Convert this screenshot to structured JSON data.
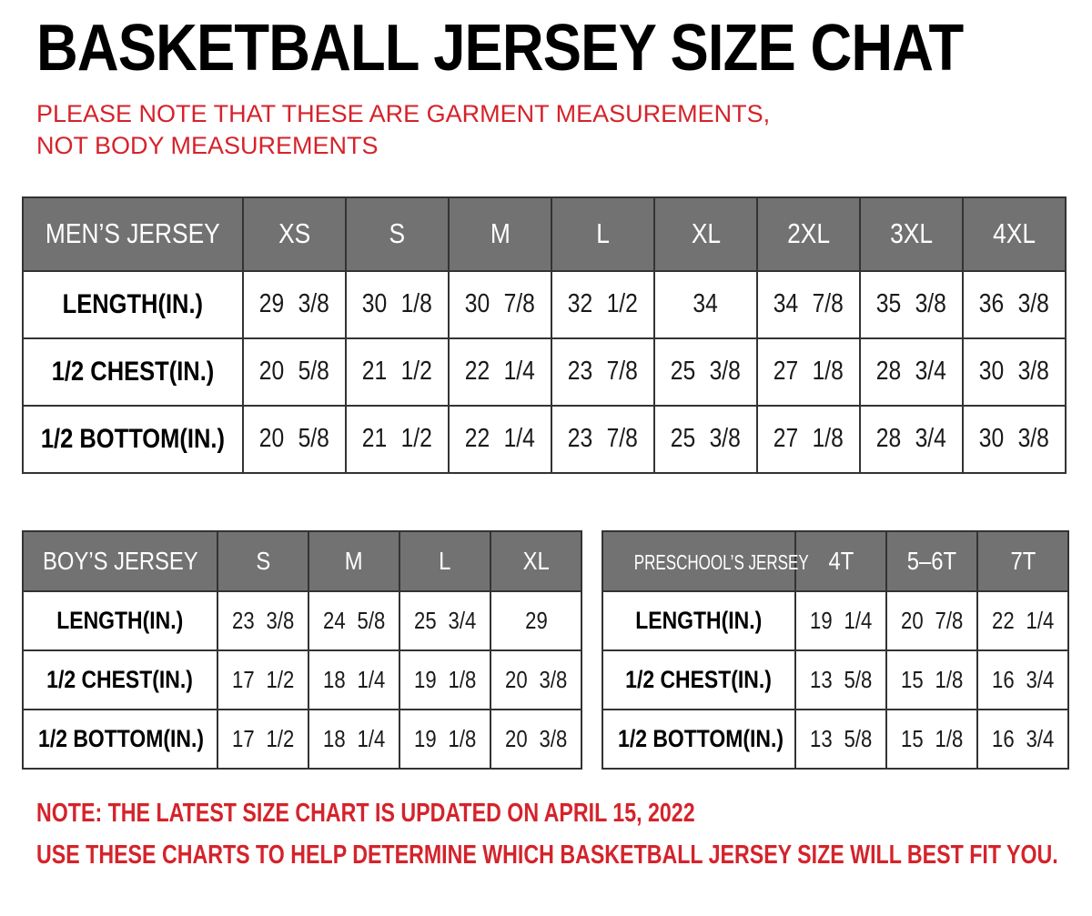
{
  "title": "BASKETBALL JERSEY SIZE CHAT",
  "top_note": "PLEASE NOTE THAT THESE ARE GARMENT MEASUREMENTS, NOT BODY MEASUREMENTS",
  "colors": {
    "accent_red": "#d5232b",
    "header_gray": "#727272",
    "table_border": "#333333",
    "title_black": "#000000"
  },
  "mens_table": {
    "header": [
      "MEN’S JERSEY",
      "XS",
      "S",
      "M",
      "L",
      "XL",
      "2XL",
      "3XL",
      "4XL"
    ],
    "rows": [
      {
        "label": "LENGTH(IN.)",
        "values": [
          "29 3/8",
          "30 1/8",
          "30 7/8",
          "32 1/2",
          "34",
          "34 7/8",
          "35 3/8",
          "36 3/8"
        ]
      },
      {
        "label": "1/2 CHEST(IN.)",
        "values": [
          "20 5/8",
          "21 1/2",
          "22 1/4",
          "23 7/8",
          "25 3/8",
          "27 1/8",
          "28 3/4",
          "30 3/8"
        ]
      },
      {
        "label": "1/2 BOTTOM(IN.)",
        "values": [
          "20 5/8",
          "21 1/2",
          "22 1/4",
          "23 7/8",
          "25 3/8",
          "27 1/8",
          "28 3/4",
          "30 3/8"
        ]
      }
    ]
  },
  "boys_table": {
    "header": [
      "BOY’S JERSEY",
      "S",
      "M",
      "L",
      "XL"
    ],
    "rows": [
      {
        "label": "LENGTH(IN.)",
        "values": [
          "23 3/8",
          "24 5/8",
          "25 3/4",
          "29"
        ]
      },
      {
        "label": "1/2 CHEST(IN.)",
        "values": [
          "17 1/2",
          "18 1/4",
          "19 1/8",
          "20 3/8"
        ]
      },
      {
        "label": "1/2 BOTTOM(IN.)",
        "values": [
          "17 1/2",
          "18 1/4",
          "19 1/8",
          "20 3/8"
        ]
      }
    ]
  },
  "preschool_table": {
    "header": [
      "PRESCHOOL’S JERSEY",
      "4T",
      "5–6T",
      "7T"
    ],
    "rows": [
      {
        "label": "LENGTH(IN.)",
        "values": [
          "19 1/4",
          "20 7/8",
          "22 1/4"
        ]
      },
      {
        "label": "1/2 CHEST(IN.)",
        "values": [
          "13 5/8",
          "15 1/8",
          "16 3/4"
        ]
      },
      {
        "label": "1/2 BOTTOM(IN.)",
        "values": [
          "13 5/8",
          "15 1/8",
          "16 3/4"
        ]
      }
    ]
  },
  "notes": {
    "note1": "NOTE: THE LATEST SIZE CHART IS UPDATED ON APRIL 15, 2022",
    "note2": "USE THESE CHARTS TO HELP DETERMINE WHICH  BASKETBALL JERSEY  SIZE WILL BEST FIT YOU."
  }
}
